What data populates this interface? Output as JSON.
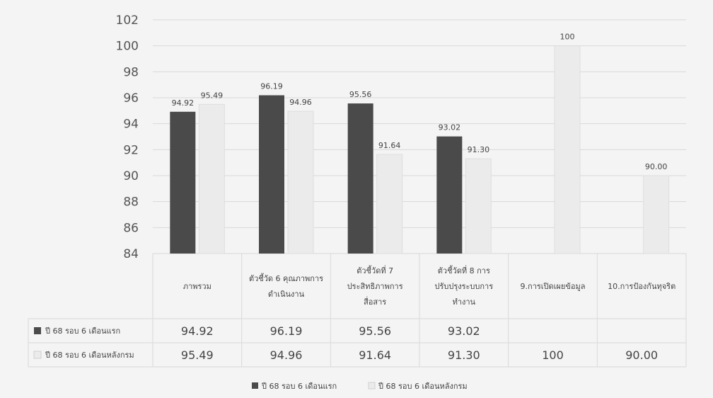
{
  "chart_data": {
    "type": "bar",
    "title": "",
    "xlabel": "",
    "ylabel": "",
    "ylim": [
      84,
      102
    ],
    "yticks": [
      84,
      86,
      88,
      90,
      92,
      94,
      96,
      98,
      100,
      102
    ],
    "grid": true,
    "legend_position": "bottom",
    "show_data_table": true,
    "categories": [
      [
        "ภาพรวม"
      ],
      [
        "ตัวชี้วัด 6 คุณภาพการ",
        "ดำเนินงาน"
      ],
      [
        "ตัวชี้วัดที่ 7",
        "ประสิทธิภาพการ",
        "สื่อสาร"
      ],
      [
        "ตัวชี้วัดที่ 8 การ",
        "ปรับปรุงระบบการ",
        "ทำงาน"
      ],
      [
        "9.การเปิดเผยข้อมูล"
      ],
      [
        "10.การป้องกันทุจริต"
      ]
    ],
    "series": [
      {
        "name": "ปี 68 รอบ 6 เดือนแรก",
        "color": "#4a4a4a",
        "values": [
          94.92,
          96.19,
          95.56,
          93.02,
          null,
          null
        ],
        "labels": [
          "94.92",
          "96.19",
          "95.56",
          "93.02",
          "",
          ""
        ]
      },
      {
        "name": "ปี 68 รอบ 6 เดือนหลังกรม",
        "color": "#ebebeb",
        "values": [
          95.49,
          94.96,
          91.64,
          91.3,
          100,
          90.0
        ],
        "labels": [
          "95.49",
          "94.96",
          "91.64",
          "91.30",
          "100",
          "90.00"
        ]
      }
    ]
  }
}
